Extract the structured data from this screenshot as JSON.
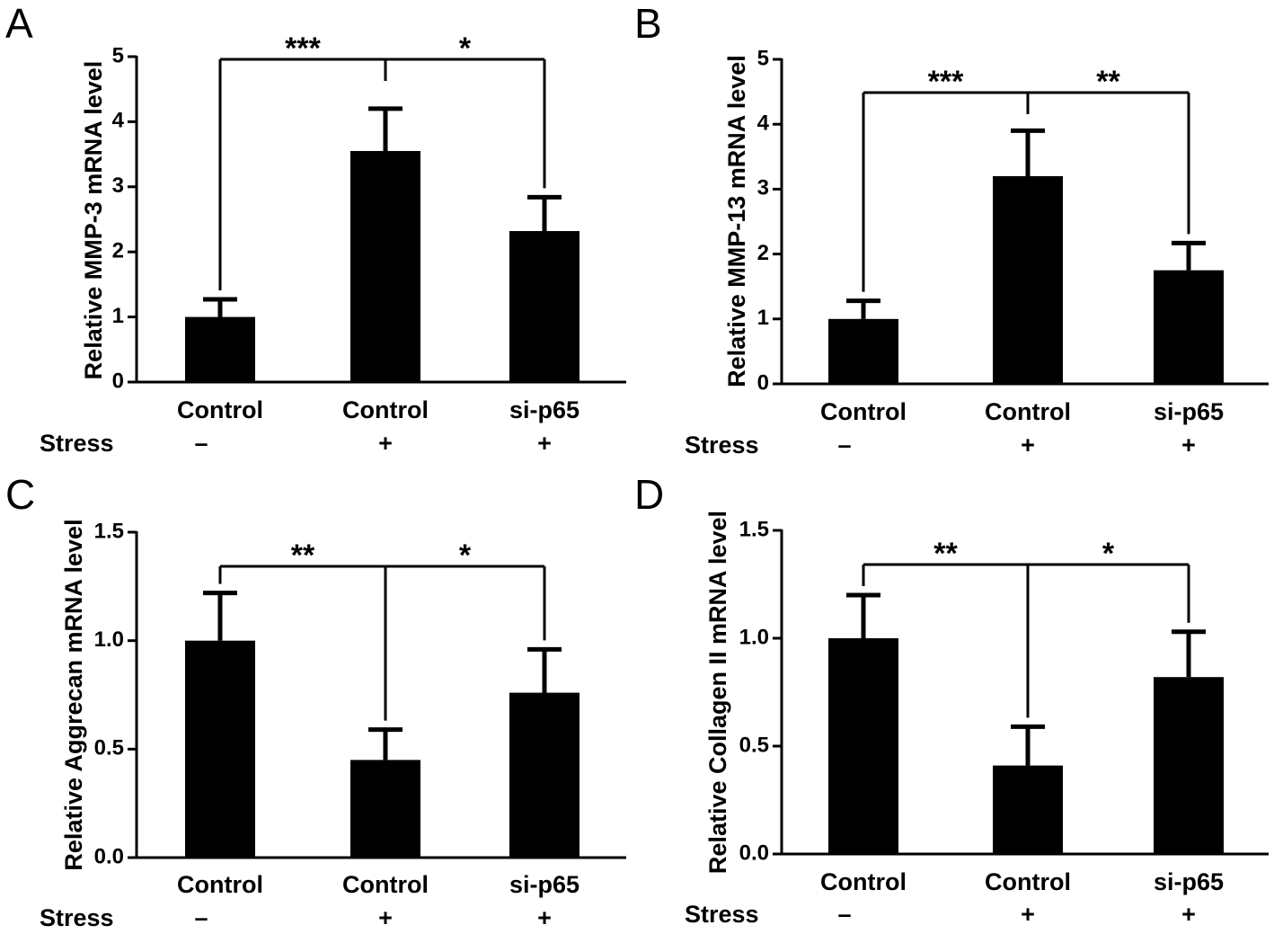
{
  "chart_data": [
    {
      "panel": "A",
      "type": "bar",
      "ylabel": "Relative MMP-3 mRNA level",
      "ylim": [
        0,
        5
      ],
      "yticks": [
        "0",
        "1",
        "2",
        "3",
        "4",
        "5"
      ],
      "categories": [
        "Control",
        "Control",
        "si-p65"
      ],
      "stress_label": "Stress",
      "stress": [
        "–",
        "+",
        "+"
      ],
      "values": [
        1.0,
        3.55,
        2.32
      ],
      "errors": [
        0.27,
        0.65,
        0.52
      ],
      "significance": [
        {
          "from": 0,
          "to": 1,
          "label": "***"
        },
        {
          "from": 1,
          "to": 2,
          "label": "*"
        }
      ]
    },
    {
      "panel": "B",
      "type": "bar",
      "ylabel": "Relative MMP-13 mRNA level",
      "ylim": [
        0,
        5
      ],
      "yticks": [
        "0",
        "1",
        "2",
        "3",
        "4",
        "5"
      ],
      "categories": [
        "Control",
        "Control",
        "si-p65"
      ],
      "stress_label": "Stress",
      "stress": [
        "–",
        "+",
        "+"
      ],
      "values": [
        1.0,
        3.2,
        1.75
      ],
      "errors": [
        0.28,
        0.7,
        0.42
      ],
      "significance": [
        {
          "from": 0,
          "to": 1,
          "label": "***"
        },
        {
          "from": 1,
          "to": 2,
          "label": "**"
        }
      ]
    },
    {
      "panel": "C",
      "type": "bar",
      "ylabel": "Relative Aggrecan mRNA level",
      "ylim": [
        0,
        1.5
      ],
      "yticks": [
        "0.0",
        "0.5",
        "1.0",
        "1.5"
      ],
      "categories": [
        "Control",
        "Control",
        "si-p65"
      ],
      "stress_label": "Stress",
      "stress": [
        "–",
        "+",
        "+"
      ],
      "values": [
        1.0,
        0.45,
        0.76
      ],
      "errors": [
        0.22,
        0.14,
        0.2
      ],
      "significance": [
        {
          "from": 0,
          "to": 1,
          "label": "**"
        },
        {
          "from": 1,
          "to": 2,
          "label": "*"
        }
      ]
    },
    {
      "panel": "D",
      "type": "bar",
      "ylabel": "Relative Collagen II mRNA level",
      "ylim": [
        0,
        1.5
      ],
      "yticks": [
        "0.0",
        "0.5",
        "1.0",
        "1.5"
      ],
      "categories": [
        "Control",
        "Control",
        "si-p65"
      ],
      "stress_label": "Stress",
      "stress": [
        "–",
        "+",
        "+"
      ],
      "values": [
        1.0,
        0.41,
        0.82
      ],
      "errors": [
        0.2,
        0.18,
        0.21
      ],
      "significance": [
        {
          "from": 0,
          "to": 1,
          "label": "**"
        },
        {
          "from": 1,
          "to": 2,
          "label": "*"
        }
      ]
    }
  ]
}
